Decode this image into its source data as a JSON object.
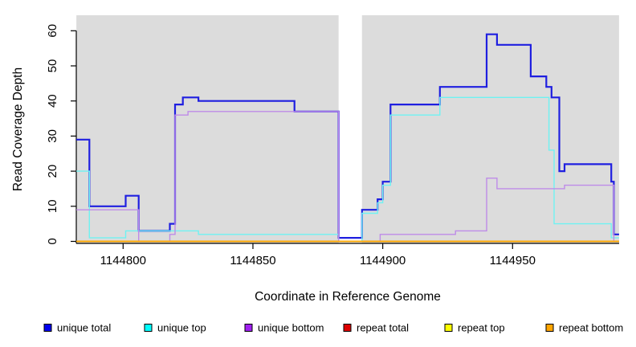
{
  "chart_data": {
    "type": "line",
    "subtype": "step",
    "title": "",
    "xlabel": "Coordinate in Reference Genome",
    "ylabel": "Read Coverage Depth",
    "xlim": [
      1144782,
      1144991
    ],
    "ylim": [
      0,
      60
    ],
    "x_ticks": [
      1144800,
      1144850,
      1144900,
      1144950
    ],
    "y_ticks": [
      0,
      10,
      20,
      30,
      40,
      50,
      60
    ],
    "grid": "off",
    "plot_bg_color": "#DCDCDC",
    "masked_regions": [
      [
        1144883,
        1144892
      ]
    ],
    "legend_position": "bottom",
    "series": [
      {
        "name": "unique total",
        "color": "#1F1FE0",
        "legend_color": "#0000EE",
        "line_width": 2.2,
        "points": [
          [
            1144782,
            29
          ],
          [
            1144787,
            10
          ],
          [
            1144801,
            13
          ],
          [
            1144806,
            3
          ],
          [
            1144818,
            5
          ],
          [
            1144820,
            39
          ],
          [
            1144823,
            41
          ],
          [
            1144829,
            40
          ],
          [
            1144866,
            37
          ],
          [
            1144883,
            1
          ],
          [
            1144892,
            9
          ],
          [
            1144898,
            12
          ],
          [
            1144900,
            17
          ],
          [
            1144903,
            39
          ],
          [
            1144922,
            44
          ],
          [
            1144940,
            59
          ],
          [
            1144944,
            56
          ],
          [
            1144957,
            47
          ],
          [
            1144963,
            44
          ],
          [
            1144965,
            41
          ],
          [
            1144968,
            20
          ],
          [
            1144970,
            22
          ],
          [
            1144988,
            17
          ],
          [
            1144989,
            2
          ],
          [
            1144991,
            2
          ]
        ]
      },
      {
        "name": "unique top",
        "color": "#6FF2F2",
        "legend_color": "#00FFFF",
        "line_width": 1.4,
        "points": [
          [
            1144782,
            20
          ],
          [
            1144787,
            1
          ],
          [
            1144801,
            3
          ],
          [
            1144829,
            2
          ],
          [
            1144883,
            0
          ],
          [
            1144892,
            8
          ],
          [
            1144898,
            11
          ],
          [
            1144900,
            16
          ],
          [
            1144903,
            36
          ],
          [
            1144922,
            41
          ],
          [
            1144964,
            26
          ],
          [
            1144966,
            5
          ],
          [
            1144988,
            1
          ],
          [
            1144991,
            1
          ]
        ]
      },
      {
        "name": "unique bottom",
        "color": "#BE8BE8",
        "legend_color": "#A020F0",
        "line_width": 1.4,
        "points": [
          [
            1144782,
            9
          ],
          [
            1144806,
            0
          ],
          [
            1144818,
            2
          ],
          [
            1144820,
            36
          ],
          [
            1144825,
            37
          ],
          [
            1144883,
            0
          ],
          [
            1144899,
            2
          ],
          [
            1144928,
            3
          ],
          [
            1144940,
            18
          ],
          [
            1144944,
            15
          ],
          [
            1144970,
            16
          ],
          [
            1144989,
            0
          ],
          [
            1144991,
            0
          ]
        ]
      },
      {
        "name": "repeat total",
        "color": "#DD0000",
        "legend_color": "#DD0000",
        "line_width": 1.4,
        "points": [
          [
            1144782,
            0
          ],
          [
            1144991,
            0
          ]
        ]
      },
      {
        "name": "repeat top",
        "color": "#FFFF00",
        "legend_color": "#FFFF00",
        "line_width": 1.4,
        "points": [
          [
            1144782,
            0
          ],
          [
            1144991,
            0
          ]
        ]
      },
      {
        "name": "repeat bottom",
        "color": "#FFA500",
        "legend_color": "#FFA500",
        "line_width": 1.7,
        "points": [
          [
            1144782,
            0
          ],
          [
            1144991,
            0
          ]
        ]
      }
    ]
  }
}
